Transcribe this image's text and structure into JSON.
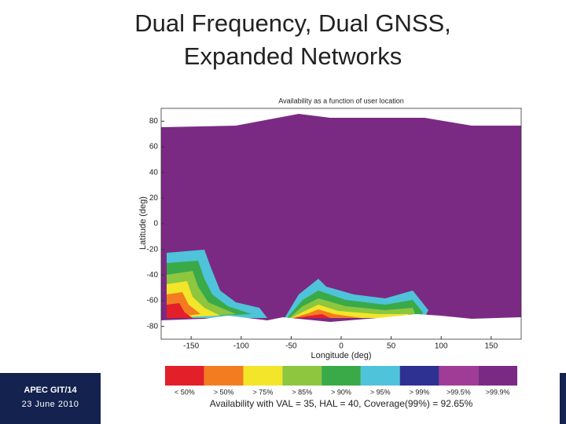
{
  "slide": {
    "title_lines": [
      "Dual Frequency, Dual GNSS,",
      "Expanded Networks"
    ],
    "footer": {
      "line1": "APEC GIT/14",
      "line2": "23 June 2010"
    }
  },
  "chart_data": {
    "type": "map",
    "title": "Availability as a function of user location",
    "x_label": "Longitude (deg)",
    "y_label": "Latitude (deg)",
    "xlim": [
      -180,
      180
    ],
    "ylim": [
      -90,
      90
    ],
    "xticks": [
      -150,
      -100,
      -50,
      0,
      50,
      100,
      150
    ],
    "yticks": [
      80,
      60,
      40,
      20,
      0,
      -20,
      -40,
      -60,
      -80
    ],
    "legend": [
      {
        "label": "< 50%",
        "color": "#e3202a"
      },
      {
        "label": "> 50%",
        "color": "#f47c20"
      },
      {
        "label": "> 75%",
        "color": "#f3e52a"
      },
      {
        "label": "> 85%",
        "color": "#8dc63f"
      },
      {
        "label": "> 90%",
        "color": "#3aaa49"
      },
      {
        "label": "> 95%",
        "color": "#4fc3d9"
      },
      {
        "label": "> 99%",
        "color": "#2e3192"
      },
      {
        "label": ">99.5%",
        "color": "#a03c96"
      },
      {
        "label": ">99.9%",
        "color": "#7b2a84"
      }
    ],
    "caption": "Availability with VAL = 35,  HAL = 40, Coverage(99%) = 92.65%"
  }
}
